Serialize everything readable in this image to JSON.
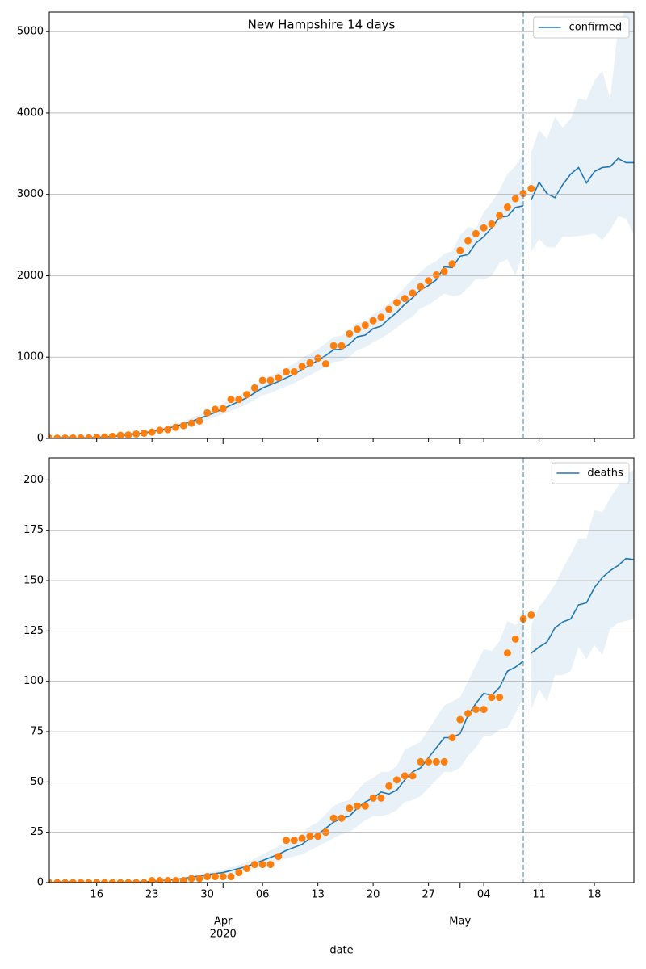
{
  "chart_data": [
    {
      "type": "line",
      "title": "New Hampshire 14 days",
      "legend": "upper right",
      "grid": true,
      "x": [
        "2020-03-10",
        "2020-03-11",
        "2020-03-12",
        "2020-03-13",
        "2020-03-14",
        "2020-03-15",
        "2020-03-16",
        "2020-03-17",
        "2020-03-18",
        "2020-03-19",
        "2020-03-20",
        "2020-03-21",
        "2020-03-22",
        "2020-03-23",
        "2020-03-24",
        "2020-03-25",
        "2020-03-26",
        "2020-03-27",
        "2020-03-28",
        "2020-03-29",
        "2020-03-30",
        "2020-03-31",
        "2020-04-01",
        "2020-04-02",
        "2020-04-03",
        "2020-04-04",
        "2020-04-05",
        "2020-04-06",
        "2020-04-07",
        "2020-04-08",
        "2020-04-09",
        "2020-04-10",
        "2020-04-11",
        "2020-04-12",
        "2020-04-13",
        "2020-04-14",
        "2020-04-15",
        "2020-04-16",
        "2020-04-17",
        "2020-04-18",
        "2020-04-19",
        "2020-04-20",
        "2020-04-21",
        "2020-04-22",
        "2020-04-23",
        "2020-04-24",
        "2020-04-25",
        "2020-04-26",
        "2020-04-27",
        "2020-04-28",
        "2020-04-29",
        "2020-04-30",
        "2020-05-01",
        "2020-05-02",
        "2020-05-03",
        "2020-05-04",
        "2020-05-05",
        "2020-05-06",
        "2020-05-07",
        "2020-05-08",
        "2020-05-09",
        "2020-05-10",
        "2020-05-11",
        "2020-05-12",
        "2020-05-13",
        "2020-05-14",
        "2020-05-15",
        "2020-05-16",
        "2020-05-17",
        "2020-05-18",
        "2020-05-19",
        "2020-05-20",
        "2020-05-21",
        "2020-05-22",
        "2020-05-23"
      ],
      "xlim": [
        "2020-03-10",
        "2020-05-23"
      ],
      "vline": "2020-05-09",
      "ylim": [
        0,
        5240
      ],
      "yticks": [
        0,
        1000,
        2000,
        3000,
        4000,
        5000
      ],
      "series": [
        {
          "name": "confirmed",
          "color": "#1f77b4",
          "values": [
            0,
            1,
            2,
            3,
            5,
            8,
            12,
            18,
            25,
            33,
            43,
            55,
            68,
            85,
            103,
            125,
            150,
            178,
            210,
            245,
            282,
            320,
            365,
            410,
            455,
            500,
            560,
            620,
            660,
            700,
            745,
            790,
            850,
            900,
            960,
            1020,
            1090,
            1095,
            1160,
            1250,
            1270,
            1350,
            1380,
            1470,
            1550,
            1650,
            1730,
            1830,
            1880,
            1950,
            2110,
            2100,
            2240,
            2260,
            2400,
            2480,
            2590,
            2720,
            2730,
            2840,
            2860,
            null,
            null,
            null,
            null,
            null,
            null,
            null,
            null,
            null,
            null,
            null,
            null,
            null,
            null
          ],
          "forecast": [
            null,
            null,
            null,
            null,
            null,
            null,
            null,
            null,
            null,
            null,
            null,
            null,
            null,
            null,
            null,
            null,
            null,
            null,
            null,
            null,
            null,
            null,
            null,
            null,
            null,
            null,
            null,
            null,
            null,
            null,
            null,
            null,
            null,
            null,
            null,
            null,
            null,
            null,
            null,
            null,
            null,
            null,
            null,
            null,
            null,
            null,
            null,
            null,
            null,
            null,
            null,
            null,
            null,
            null,
            null,
            null,
            null,
            null,
            null,
            null,
            null,
            2930,
            3150,
            3010,
            2960,
            3120,
            3250,
            3330,
            3140,
            3280,
            3330,
            3340,
            3440,
            3390,
            3390
          ]
        }
      ],
      "points": {
        "color": "#ff7f0e",
        "values": [
          4,
          4,
          5,
          6,
          6,
          7,
          13,
          17,
          26,
          39,
          44,
          55,
          65,
          78,
          101,
          108,
          137,
          158,
          187,
          214,
          314,
          358,
          367,
          479,
          479,
          540,
          621,
          715,
          715,
          747,
          819,
          819,
          885,
          929,
          985,
          917,
          1139,
          1139,
          1287,
          1342,
          1392,
          1447,
          1491,
          1588,
          1670,
          1720,
          1787,
          1864,
          1938,
          2010,
          2054,
          2146,
          2310,
          2429,
          2518,
          2588,
          2636,
          2740,
          2843,
          2947,
          3011,
          3071,
          null,
          null,
          null,
          null,
          null,
          null,
          null,
          null,
          null,
          null,
          null,
          null,
          null
        ]
      },
      "band": {
        "color": "#1f77b4",
        "lower": [
          0,
          0,
          0,
          1,
          2,
          4,
          7,
          11,
          16,
          22,
          30,
          40,
          50,
          64,
          79,
          97,
          118,
          141,
          168,
          197,
          229,
          262,
          300,
          340,
          380,
          420,
          475,
          530,
          560,
          600,
          640,
          680,
          730,
          780,
          830,
          880,
          940,
          950,
          1000,
          1090,
          1120,
          1180,
          1230,
          1290,
          1360,
          1440,
          1500,
          1600,
          1640,
          1710,
          1780,
          1750,
          1760,
          1850,
          1960,
          1950,
          2000,
          2160,
          2200,
          2000,
          2300,
          2300,
          2450,
          2350,
          2350,
          2480,
          2480,
          2490,
          2500,
          2520,
          2440,
          2560,
          2730,
          2700,
          2510
        ],
        "upper": [
          2,
          3,
          5,
          7,
          10,
          14,
          19,
          26,
          35,
          45,
          57,
          71,
          87,
          107,
          128,
          154,
          183,
          215,
          252,
          292,
          336,
          380,
          430,
          480,
          530,
          580,
          650,
          720,
          765,
          815,
          870,
          920,
          990,
          1040,
          1100,
          1170,
          1250,
          1260,
          1330,
          1420,
          1440,
          1530,
          1580,
          1660,
          1750,
          1860,
          1960,
          2050,
          2130,
          2180,
          2270,
          2300,
          2500,
          2600,
          2580,
          2780,
          2900,
          3050,
          3250,
          3350,
          3500,
          3520,
          3790,
          3680,
          3950,
          3820,
          3930,
          4180,
          4160,
          4400,
          4520,
          4170,
          5050,
          5300,
          5400
        ]
      }
    },
    {
      "type": "line",
      "legend": "upper right",
      "grid": true,
      "xlabel": "date",
      "x": [
        "2020-03-10",
        "2020-03-11",
        "2020-03-12",
        "2020-03-13",
        "2020-03-14",
        "2020-03-15",
        "2020-03-16",
        "2020-03-17",
        "2020-03-18",
        "2020-03-19",
        "2020-03-20",
        "2020-03-21",
        "2020-03-22",
        "2020-03-23",
        "2020-03-24",
        "2020-03-25",
        "2020-03-26",
        "2020-03-27",
        "2020-03-28",
        "2020-03-29",
        "2020-03-30",
        "2020-03-31",
        "2020-04-01",
        "2020-04-02",
        "2020-04-03",
        "2020-04-04",
        "2020-04-05",
        "2020-04-06",
        "2020-04-07",
        "2020-04-08",
        "2020-04-09",
        "2020-04-10",
        "2020-04-11",
        "2020-04-12",
        "2020-04-13",
        "2020-04-14",
        "2020-04-15",
        "2020-04-16",
        "2020-04-17",
        "2020-04-18",
        "2020-04-19",
        "2020-04-20",
        "2020-04-21",
        "2020-04-22",
        "2020-04-23",
        "2020-04-24",
        "2020-04-25",
        "2020-04-26",
        "2020-04-27",
        "2020-04-28",
        "2020-04-29",
        "2020-04-30",
        "2020-05-01",
        "2020-05-02",
        "2020-05-03",
        "2020-05-04",
        "2020-05-05",
        "2020-05-06",
        "2020-05-07",
        "2020-05-08",
        "2020-05-09",
        "2020-05-10",
        "2020-05-11",
        "2020-05-12",
        "2020-05-13",
        "2020-05-14",
        "2020-05-15",
        "2020-05-16",
        "2020-05-17",
        "2020-05-18",
        "2020-05-19",
        "2020-05-20",
        "2020-05-21",
        "2020-05-22",
        "2020-05-23"
      ],
      "xlim": [
        "2020-03-10",
        "2020-05-23"
      ],
      "vline": "2020-05-09",
      "xticks": [
        {
          "value": "2020-03-16",
          "label": "16"
        },
        {
          "value": "2020-03-23",
          "label": "23"
        },
        {
          "value": "2020-03-30",
          "label": "30"
        },
        {
          "value": "2020-04-06",
          "label": "06"
        },
        {
          "value": "2020-04-13",
          "label": "13"
        },
        {
          "value": "2020-04-20",
          "label": "20"
        },
        {
          "value": "2020-04-27",
          "label": "27"
        },
        {
          "value": "2020-05-04",
          "label": "04"
        },
        {
          "value": "2020-05-11",
          "label": "11"
        },
        {
          "value": "2020-05-18",
          "label": "18"
        }
      ],
      "xticks_major": [
        {
          "value": "2020-04-01",
          "label": "Apr"
        },
        {
          "value": "2020-05-01",
          "label": "May"
        }
      ],
      "xyear": {
        "value": "2020-04-01",
        "label": "2020"
      },
      "ylim": [
        0,
        211
      ],
      "yticks": [
        0,
        25,
        50,
        75,
        100,
        125,
        150,
        175,
        200
      ],
      "series": [
        {
          "name": "deaths",
          "color": "#1f77b4",
          "values": [
            0,
            0,
            0,
            0,
            0,
            0,
            0,
            0,
            0,
            0,
            0.1,
            0.2,
            0.4,
            0.6,
            0.9,
            1.2,
            1.6,
            2.1,
            2.7,
            3.3,
            4,
            4.5,
            5,
            6,
            7,
            8,
            9.5,
            11,
            12.5,
            14,
            16,
            17.5,
            19,
            22,
            24,
            27,
            30,
            32,
            33,
            37,
            40,
            42,
            45,
            44,
            46,
            51,
            55,
            57,
            62,
            67,
            72,
            72,
            74,
            83,
            89,
            94,
            93,
            97,
            105,
            107,
            110,
            null,
            null,
            null,
            null,
            null,
            null,
            null,
            null,
            null,
            null,
            null,
            null,
            null,
            null
          ],
          "forecast": [
            null,
            null,
            null,
            null,
            null,
            null,
            null,
            null,
            null,
            null,
            null,
            null,
            null,
            null,
            null,
            null,
            null,
            null,
            null,
            null,
            null,
            null,
            null,
            null,
            null,
            null,
            null,
            null,
            null,
            null,
            null,
            null,
            null,
            null,
            null,
            null,
            null,
            null,
            null,
            null,
            null,
            null,
            null,
            null,
            null,
            null,
            null,
            null,
            null,
            null,
            null,
            null,
            null,
            null,
            null,
            null,
            null,
            null,
            null,
            null,
            null,
            114,
            117,
            119.5,
            126.5,
            129.5,
            131,
            138,
            139,
            146.5,
            151.5,
            155,
            157.5,
            161,
            160.5
          ]
        }
      ],
      "points": {
        "color": "#ff7f0e",
        "values": [
          0,
          0,
          0,
          0,
          0,
          0,
          0,
          0,
          0,
          0,
          0,
          0,
          0,
          1,
          1,
          1,
          1,
          1,
          2,
          2,
          3,
          3,
          3,
          3,
          5,
          7,
          9,
          9,
          9,
          13,
          21,
          21,
          22,
          23,
          23,
          25,
          32,
          32,
          37,
          38,
          38,
          42,
          42,
          48,
          51,
          53,
          53,
          60,
          60,
          60,
          60,
          72,
          81,
          84,
          86,
          86,
          92,
          92,
          114,
          121,
          131,
          133,
          null,
          null,
          null,
          null,
          null,
          null,
          null,
          null,
          null,
          null,
          null,
          null,
          null
        ]
      },
      "band": {
        "color": "#1f77b4",
        "lower": [
          0,
          0,
          0,
          0,
          0,
          0,
          0,
          0,
          0,
          0,
          0,
          0.1,
          0.3,
          0.4,
          0.6,
          0.9,
          1.2,
          1.6,
          2,
          2.5,
          3,
          3.4,
          3.8,
          4.5,
          5.3,
          6,
          7,
          8,
          9.5,
          10.5,
          12,
          13,
          14,
          16,
          18,
          20,
          22,
          24,
          25,
          28,
          31,
          33,
          33,
          34,
          36,
          40,
          41,
          43,
          47,
          51,
          55,
          55,
          57,
          63,
          67,
          73,
          73,
          76,
          77,
          84,
          92,
          86,
          96,
          90,
          103,
          103,
          105,
          117,
          111,
          118,
          113,
          126,
          129,
          130,
          131
        ],
        "upper": [
          0.2,
          0.2,
          0.2,
          0.2,
          0.2,
          0.2,
          0.2,
          0.2,
          0.2,
          0.3,
          0.4,
          0.5,
          0.7,
          1,
          1.3,
          1.7,
          2.1,
          2.7,
          3.4,
          4.2,
          5,
          5.7,
          6.4,
          7.6,
          8.8,
          10,
          12,
          14,
          16,
          18,
          20,
          22,
          24,
          28,
          30,
          34,
          38,
          40,
          41,
          46,
          50,
          52,
          55,
          55,
          58,
          66,
          68,
          70,
          76,
          82,
          88,
          90,
          92,
          100,
          108,
          116,
          115,
          120,
          130,
          128,
          132,
          128,
          137,
          142,
          148,
          156,
          163,
          171,
          171,
          185,
          184,
          191,
          197,
          203,
          205
        ]
      }
    }
  ]
}
